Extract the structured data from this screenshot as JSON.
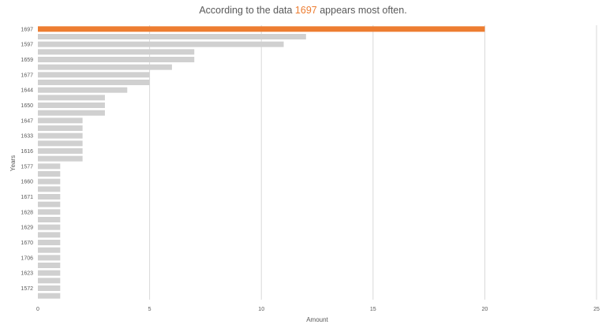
{
  "chart_data": {
    "type": "bar",
    "orientation": "horizontal",
    "title_parts": [
      "According to the data ",
      "1697",
      " appears most often."
    ],
    "xlabel": "Amount",
    "ylabel": "Years",
    "xlim": [
      0,
      25
    ],
    "x_ticks": [
      0,
      5,
      10,
      15,
      20,
      25
    ],
    "grid": "vertical",
    "colors": {
      "highlight": "#ED7D31",
      "bar": "#D0D0D0",
      "grid": "#D9D9D9",
      "text": "#595959"
    },
    "categories": [
      "1697",
      "",
      "1597",
      "",
      "1659",
      "",
      "1677",
      "",
      "1644",
      "",
      "1650",
      "",
      "1647",
      "",
      "1633",
      "",
      "1616",
      "",
      "1577",
      "",
      "1660",
      "",
      "1671",
      "",
      "1628",
      "",
      "1629",
      "",
      "1670",
      "",
      "1706",
      "",
      "1623",
      "",
      "1572",
      ""
    ],
    "values": [
      20,
      12,
      11,
      7,
      7,
      6,
      5,
      5,
      4,
      3,
      3,
      3,
      2,
      2,
      2,
      2,
      2,
      2,
      1,
      1,
      1,
      1,
      1,
      1,
      1,
      1,
      1,
      1,
      1,
      1,
      1,
      1,
      1,
      1,
      1,
      1
    ],
    "highlight_index": 0
  }
}
